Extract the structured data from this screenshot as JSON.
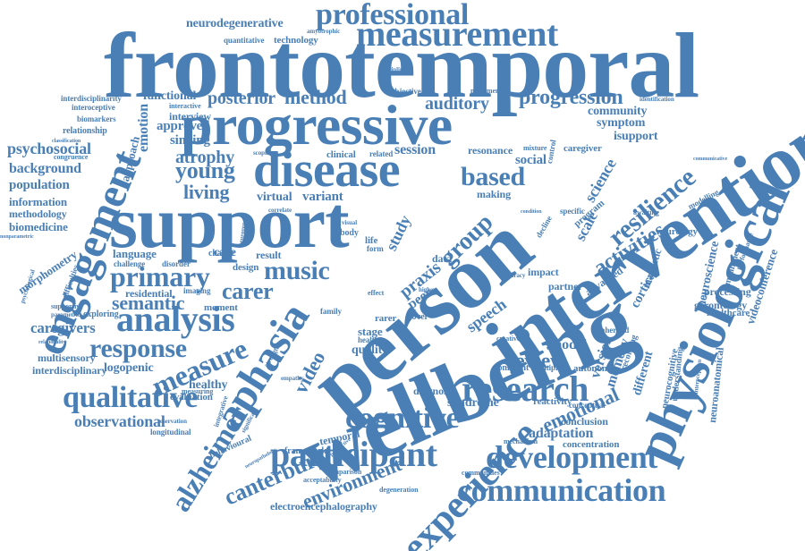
{
  "word_color": "#4a7fb5",
  "background_color": "#ffffff",
  "words": {
    "frontotemporal": "frontotemporal",
    "progressive": "progressive",
    "support": "support",
    "wellbeing": "wellbeing",
    "person": "person",
    "intervention": "intervention",
    "disease": "disease",
    "physiological": "physiological",
    "engagement": "engagement",
    "measurement": "measurement",
    "professional": "professional",
    "analysis": "analysis",
    "aphasia": "aphasia",
    "experience": "experience",
    "participant": "participant",
    "development": "development",
    "communication": "communication",
    "research": "research",
    "cognitive": "cognitive",
    "measure": "measure",
    "qualitative": "qualitative",
    "alzheimer": "alzheimer",
    "canterbury": "canterbury",
    "response": "response",
    "primary": "primary",
    "semantic": "semantic",
    "music": "music",
    "carer": "carer",
    "posterior": "posterior",
    "method": "method",
    "progression": "progression",
    "based": "based",
    "group": "group",
    "resilience": "resilience",
    "activities": "activities",
    "review": "review",
    "emotional": "emotional",
    "young": "young",
    "living": "living",
    "atrophy": "atrophy",
    "observational": "observational",
    "environment": "environment",
    "neurodegenerative": "neurodegenerative",
    "psychosocial": "psychosocial",
    "background": "background",
    "population": "population",
    "information": "information",
    "methodology": "methodology",
    "biomedicine": "biomedicine",
    "caregivers": "caregivers",
    "logopenic": "logopenic",
    "interdisciplinary": "interdisciplinary",
    "multisensory": "multisensory",
    "evaluation": "evaluation",
    "healthy": "healthy",
    "longitudinal": "longitudinal",
    "morphometry": "morphometry",
    "quantitative": "quantitative",
    "technology": "technology",
    "amyotrophic": "amyotrophic",
    "functional": "functional",
    "interactive": "interactive",
    "interview": "interview",
    "approved": "approved",
    "singing": "singing",
    "emotion": "emotion",
    "approach": "approach",
    "virtual": "virtual",
    "variant": "variant",
    "care": "care",
    "language": "language",
    "challenge": "challenge",
    "result": "result",
    "residential": "residential",
    "moment": "moment",
    "exploring": "exploring",
    "supportive": "supportive",
    "parametric": "parametric",
    "relationality": "relationality",
    "relationship": "relationship",
    "interoceptive": "interoceptive",
    "biomarkers": "biomarkers",
    "congruence": "congruence",
    "nonparametric": "nonparametric",
    "interdisciplinarity": "interdisciplinarity",
    "classification": "classification",
    "session": "session",
    "auditory": "auditory",
    "objective": "objective",
    "movement": "movement",
    "discipline": "discipline",
    "clinical": "clinical",
    "related": "related",
    "community": "community",
    "symptom": "symptom",
    "isupport": "isupport",
    "identification": "identification",
    "resonance": "resonance",
    "mixture": "mixture",
    "caregiver": "caregiver",
    "social": "social",
    "science": "science",
    "scale": "scale",
    "neurology": "neurology",
    "modelling": "modelling",
    "communicative": "communicative",
    "neuroscience": "neuroscience",
    "videoconference": "videoconference",
    "impairment": "impairment",
    "performance": "performance",
    "gerontology": "gerontology",
    "healthcare": "healthcare",
    "processing": "processing",
    "magnetic": "magnetic",
    "cortical": "cortical",
    "advanced": "advanced",
    "partner": "partner",
    "impact": "impact",
    "program": "program",
    "specific": "specific",
    "awaiting": "awaiting",
    "neurocognitive": "neurocognitive",
    "understanding": "understanding",
    "interoception": "interoception",
    "neuroanatomical": "neuroanatomical",
    "model": "model",
    "memory": "memory",
    "version": "version",
    "inherited": "inherited",
    "recording": "recording",
    "different": "different",
    "nonfluent": "nonfluent",
    "multiple": "multiple",
    "autonomic": "autonomic",
    "conceptual": "conceptual",
    "conclusion": "conclusion",
    "adaptation": "adaptation",
    "concentration": "concentration",
    "mechanism": "mechanism",
    "reactivity": "reactivity",
    "syndrome": "syndrome",
    "diagnosis": "diagnosis",
    "speech": "speech",
    "praxis": "praxis",
    "peer": "peer",
    "study": "study",
    "data": "data",
    "stage": "stage",
    "quality": "quality",
    "health": "health",
    "rarer": "rarer",
    "novel": "novel",
    "creative": "creative",
    "video": "video",
    "temporal": "temporal",
    "framework": "framework",
    "comparison": "comparison",
    "communities": "communities",
    "acceptability": "acceptability",
    "degeneration": "degeneration",
    "electroencephalography": "electroencephalography",
    "behavioural": "behavioural",
    "integrative": "integrative",
    "measuring": "measuring",
    "design": "design",
    "change": "change",
    "imaging": "imaging",
    "disorder": "disorder",
    "difficulties": "difficulties",
    "psychological": "psychological",
    "scoping": "scoping",
    "family": "family",
    "making": "making",
    "life": "life",
    "form": "form",
    "body": "body",
    "visual": "visual",
    "neurogenetic": "neurogenetic",
    "correlate": "correlate",
    "strength": "strength",
    "empathy": "empathy",
    "significant": "significant",
    "reservation": "reservation",
    "neuropathology": "neuropathology",
    "perspective": "perspective",
    "effect": "effect",
    "higher": "higher",
    "control": "control",
    "accuracy": "accuracy",
    "decline": "decline",
    "condition": "condition"
  }
}
